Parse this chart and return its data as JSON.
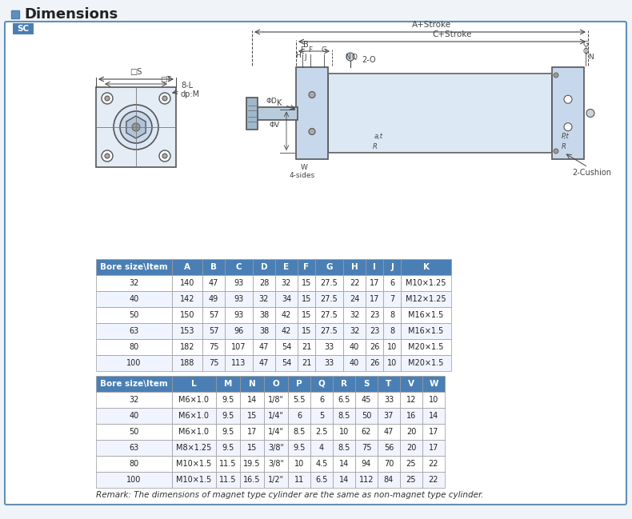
{
  "title": "Dimensions",
  "sc_label": "SC",
  "bg_color": "#f0f4f8",
  "outer_border_color": "#6090b8",
  "header_bg": "#4a7fb5",
  "header_fg": "#ffffff",
  "row_bg_even": "#ffffff",
  "row_bg_odd": "#f0f4ff",
  "grid_color": "#999999",
  "table1_headers": [
    "Bore size\\Item",
    "A",
    "B",
    "C",
    "D",
    "E",
    "F",
    "G",
    "H",
    "I",
    "J",
    "K"
  ],
  "table1_rows": [
    [
      "32",
      "140",
      "47",
      "93",
      "28",
      "32",
      "15",
      "27.5",
      "22",
      "17",
      "6",
      "M10×1.25"
    ],
    [
      "40",
      "142",
      "49",
      "93",
      "32",
      "34",
      "15",
      "27.5",
      "24",
      "17",
      "7",
      "M12×1.25"
    ],
    [
      "50",
      "150",
      "57",
      "93",
      "38",
      "42",
      "15",
      "27.5",
      "32",
      "23",
      "8",
      "M16×1.5"
    ],
    [
      "63",
      "153",
      "57",
      "96",
      "38",
      "42",
      "15",
      "27.5",
      "32",
      "23",
      "8",
      "M16×1.5"
    ],
    [
      "80",
      "182",
      "75",
      "107",
      "47",
      "54",
      "21",
      "33",
      "40",
      "26",
      "10",
      "M20×1.5"
    ],
    [
      "100",
      "188",
      "75",
      "113",
      "47",
      "54",
      "21",
      "33",
      "40",
      "26",
      "10",
      "M20×1.5"
    ]
  ],
  "table2_headers": [
    "Bore size\\Item",
    "L",
    "M",
    "N",
    "O",
    "P",
    "Q",
    "R",
    "S",
    "T",
    "V",
    "W"
  ],
  "table2_rows": [
    [
      "32",
      "M6×1.0",
      "9.5",
      "14",
      "1/8\"",
      "5.5",
      "6",
      "6.5",
      "45",
      "33",
      "12",
      "10"
    ],
    [
      "40",
      "M6×1.0",
      "9.5",
      "15",
      "1/4\"",
      "6",
      "5",
      "8.5",
      "50",
      "37",
      "16",
      "14"
    ],
    [
      "50",
      "M6×1.0",
      "9.5",
      "17",
      "1/4\"",
      "8.5",
      "2.5",
      "10",
      "62",
      "47",
      "20",
      "17"
    ],
    [
      "63",
      "M8×1.25",
      "9.5",
      "15",
      "3/8\"",
      "9.5",
      "4",
      "8.5",
      "75",
      "56",
      "20",
      "17"
    ],
    [
      "80",
      "M10×1.5",
      "11.5",
      "19.5",
      "3/8\"",
      "10",
      "4.5",
      "14",
      "94",
      "70",
      "25",
      "22"
    ],
    [
      "100",
      "M10×1.5",
      "11.5",
      "16.5",
      "1/2\"",
      "11",
      "6.5",
      "14",
      "112",
      "84",
      "25",
      "22"
    ]
  ],
  "remark": "Remark: The dimensions of magnet type cylinder are the same as non-magnet type cylinder."
}
